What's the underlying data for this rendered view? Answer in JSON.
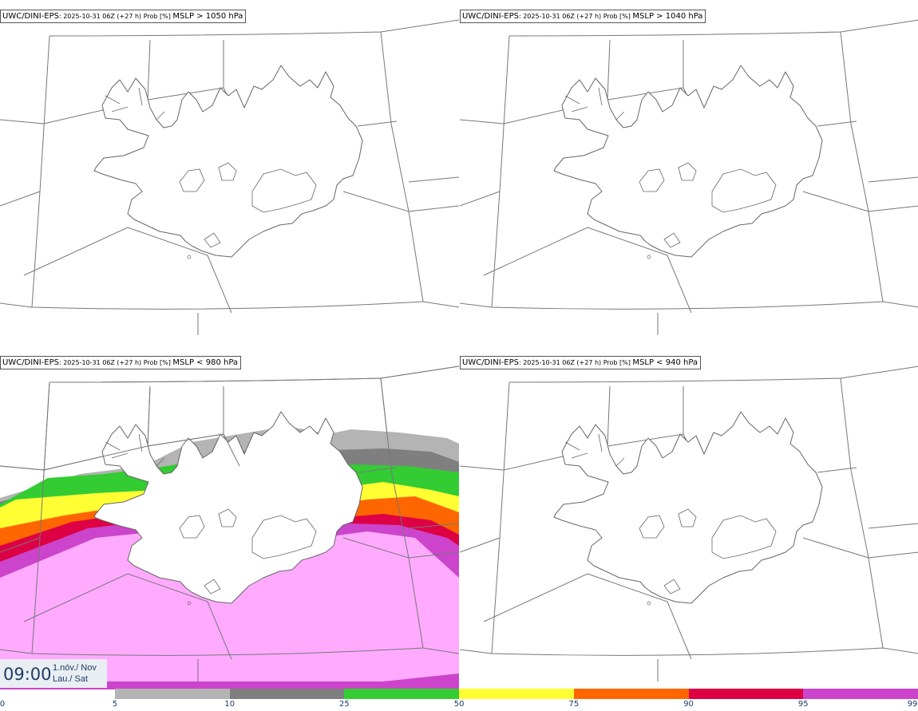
{
  "panels": [
    {
      "model": "UWC/DINI-EPS",
      "run": ": 2025-10-31 06Z (+27 h) Prob [%] ",
      "threshold": "MSLP > 1050 hPa",
      "filled": false
    },
    {
      "model": "UWC/DINI-EPS",
      "run": ": 2025-10-31 06Z (+27 h) Prob [%] ",
      "threshold": "MSLP > 1040 hPa",
      "filled": false
    },
    {
      "model": "UWC/DINI-EPS",
      "run": ": 2025-10-31 06Z (+27 h) Prob [%] ",
      "threshold": "MSLP < 980 hPa",
      "filled": true
    },
    {
      "model": "UWC/DINI-EPS",
      "run": ": 2025-10-31 06Z (+27 h) Prob [%] ",
      "threshold": "MSLP < 940 hPa",
      "filled": false
    }
  ],
  "time": {
    "hour": "09:00",
    "date": "1.nóv./ Nov",
    "day": "Lau./ Sat"
  },
  "colorbar": {
    "ticks": [
      "0",
      "5",
      "10",
      "25",
      "50",
      "75",
      "90",
      "95",
      "99"
    ],
    "bins": [
      {
        "from": 5,
        "to": 10,
        "color": "#b4b4b4"
      },
      {
        "from": 10,
        "to": 25,
        "color": "#7f7f7f"
      },
      {
        "from": 25,
        "to": 50,
        "color": "#33cc33"
      },
      {
        "from": 50,
        "to": 75,
        "color": "#ffff33"
      },
      {
        "from": 75,
        "to": 90,
        "color": "#ff6600"
      },
      {
        "from": 90,
        "to": 95,
        "color": "#dd0044"
      },
      {
        "from": 95,
        "to": 99,
        "color": "#cc44cc"
      },
      {
        "from": 99,
        "to": 100,
        "color": "#ffaaff"
      }
    ]
  }
}
